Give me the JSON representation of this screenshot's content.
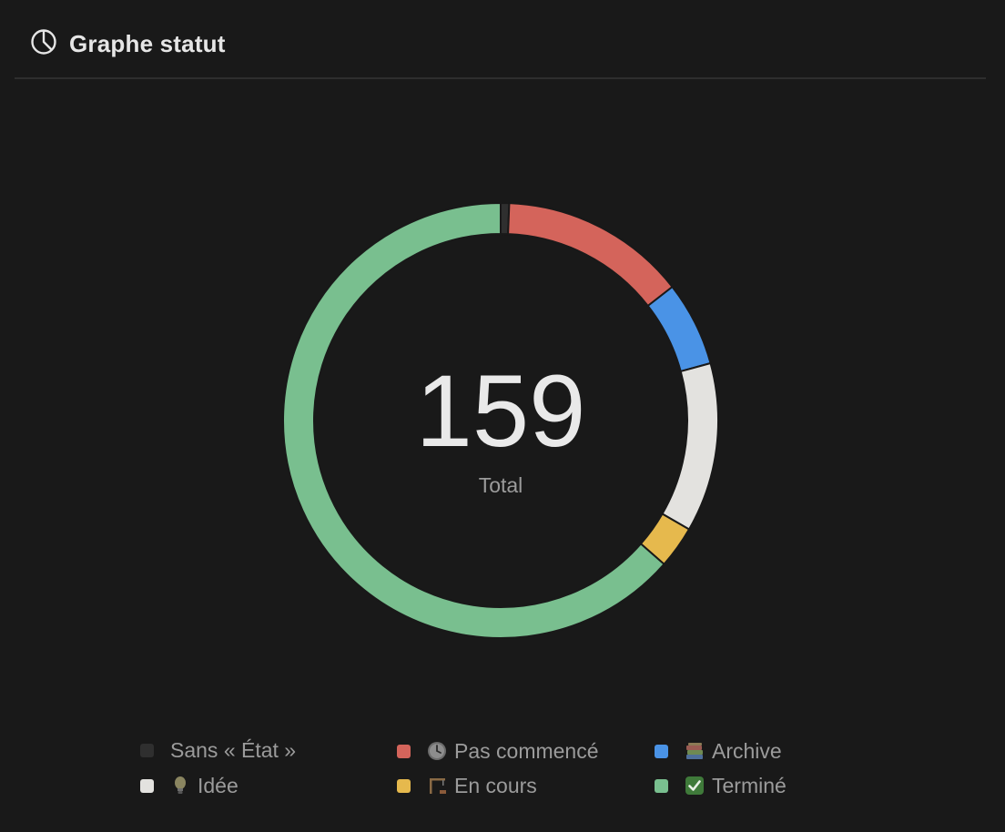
{
  "header": {
    "title": "Graphe statut",
    "icon": "pie-chart-icon"
  },
  "colors": {
    "background": "#191919",
    "sans_etat": "#2f2f2f",
    "pas_commence": "#d4645b",
    "archive": "#4a93e6",
    "idee": "#e3e2df",
    "en_cours": "#e6b94d",
    "termine": "#79bf8f"
  },
  "chart_data": {
    "type": "pie",
    "variant": "donut",
    "center": {
      "value": "159",
      "label": "Total"
    },
    "slices": [
      {
        "label": "Sans « État »",
        "value": 1,
        "color": "#2f2f2f",
        "icon": ""
      },
      {
        "label": "Pas commencé",
        "value": 22,
        "color": "#d4645b",
        "icon": "clock-icon"
      },
      {
        "label": "Archive",
        "value": 10,
        "color": "#4a93e6",
        "icon": "books-icon"
      },
      {
        "label": "Idée",
        "value": 20,
        "color": "#e3e2df",
        "icon": "lightbulb-icon"
      },
      {
        "label": "En cours",
        "value": 5,
        "color": "#e6b94d",
        "icon": "construction-icon"
      },
      {
        "label": "Terminé",
        "value": 101,
        "color": "#79bf8f",
        "icon": "check-icon"
      }
    ],
    "legend_position": "bottom"
  }
}
